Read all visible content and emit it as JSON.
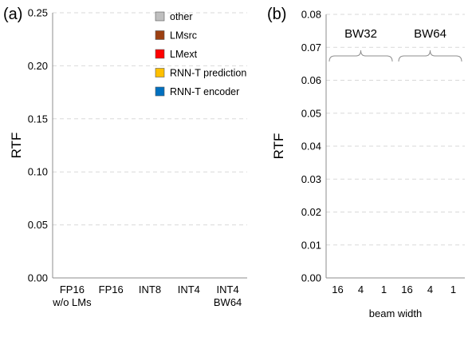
{
  "chart_data": [
    {
      "type": "bar",
      "panel_label": "(a)",
      "ylabel": "RTF",
      "ylim": [
        0,
        0.25
      ],
      "yticks": [
        "0.00",
        "0.05",
        "0.10",
        "0.15",
        "0.20",
        "0.25"
      ],
      "categories": [
        "FP16\nw/o LMs",
        "FP16",
        "INT8",
        "INT4",
        "INT4\nBW64"
      ],
      "legend": [
        "other",
        "LMsrc",
        "LMext",
        "RNN-T prediction",
        "RNN-T encoder"
      ],
      "legend_position": "top-right",
      "grid": true,
      "series": []
    },
    {
      "type": "bar",
      "panel_label": "(b)",
      "ylabel": "RTF",
      "xlabel": "beam width",
      "ylim": [
        0,
        0.08
      ],
      "yticks": [
        "0.00",
        "0.01",
        "0.02",
        "0.03",
        "0.04",
        "0.05",
        "0.06",
        "0.07",
        "0.08"
      ],
      "categories": [
        "16",
        "4",
        "1",
        "16",
        "4",
        "1"
      ],
      "groups": [
        "BW32",
        "BW64"
      ],
      "grid": true,
      "series": []
    }
  ],
  "colors": {
    "other": "#bfbfbf",
    "LMsrc": "#9c4012",
    "LMext": "#ff0000",
    "RNN-T prediction": "#ffc000",
    "RNN-T encoder": "#0070c0"
  }
}
